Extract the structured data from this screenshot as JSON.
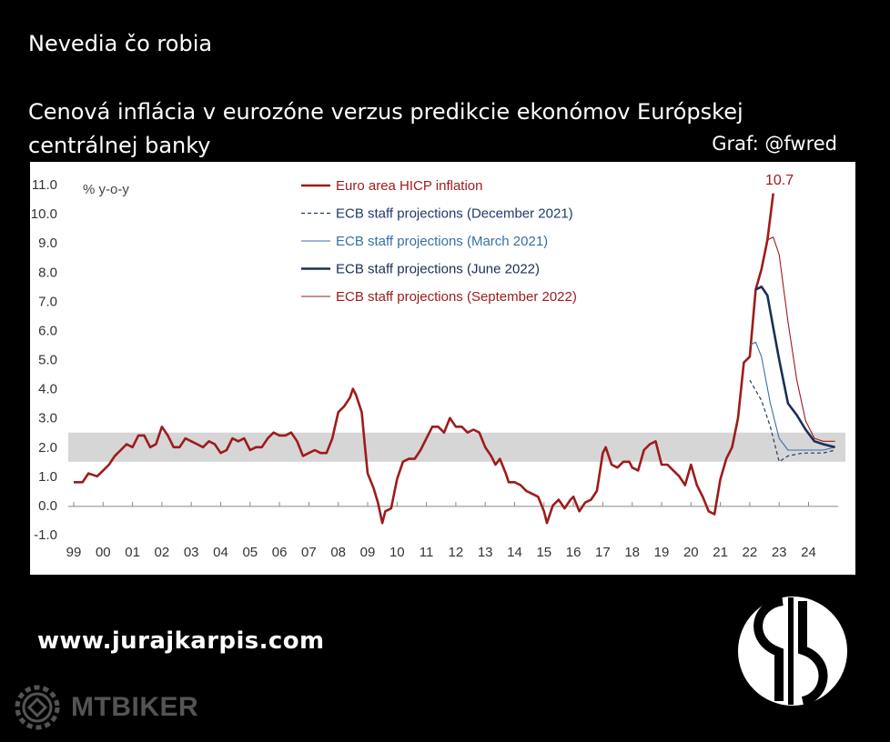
{
  "header": {
    "subtitle_top": "Nevedia čo robia",
    "title": "Cenová inflácia v eurozóne verzus predikcie ekonómov Európskej centrálnej banky",
    "credit": "Graf: @fwred"
  },
  "footer": {
    "website": "www.jurajkarpis.com",
    "watermark": "MTBIKER"
  },
  "chart_data": {
    "type": "line",
    "unit_label": "% y-o-y",
    "ylim": [
      -1.0,
      11.0
    ],
    "y_ticks": [
      "11.0",
      "10.0",
      "9.0",
      "8.0",
      "7.0",
      "6.0",
      "5.0",
      "4.0",
      "3.0",
      "2.0",
      "1.0",
      "0.0",
      "-1.0"
    ],
    "x_ticks": [
      "99",
      "00",
      "01",
      "02",
      "03",
      "04",
      "05",
      "06",
      "07",
      "08",
      "09",
      "10",
      "11",
      "12",
      "13",
      "14",
      "15",
      "16",
      "17",
      "18",
      "19",
      "20",
      "21",
      "22",
      "23",
      "24"
    ],
    "target_band": [
      1.5,
      2.5
    ],
    "peak_label": "10.7",
    "series": [
      {
        "name": "Euro area HICP inflation",
        "color": "#9e1b1b",
        "style": "thick",
        "points": [
          [
            1999.0,
            0.8
          ],
          [
            1999.3,
            0.8
          ],
          [
            1999.5,
            1.1
          ],
          [
            1999.8,
            1.0
          ],
          [
            2000.0,
            1.2
          ],
          [
            2000.2,
            1.4
          ],
          [
            2000.4,
            1.7
          ],
          [
            2000.6,
            1.9
          ],
          [
            2000.8,
            2.1
          ],
          [
            2001.0,
            2.0
          ],
          [
            2001.2,
            2.4
          ],
          [
            2001.4,
            2.4
          ],
          [
            2001.6,
            2.0
          ],
          [
            2001.8,
            2.1
          ],
          [
            2002.0,
            2.7
          ],
          [
            2002.2,
            2.4
          ],
          [
            2002.4,
            2.0
          ],
          [
            2002.6,
            2.0
          ],
          [
            2002.8,
            2.3
          ],
          [
            2003.0,
            2.2
          ],
          [
            2003.2,
            2.1
          ],
          [
            2003.4,
            2.0
          ],
          [
            2003.6,
            2.2
          ],
          [
            2003.8,
            2.1
          ],
          [
            2004.0,
            1.8
          ],
          [
            2004.2,
            1.9
          ],
          [
            2004.4,
            2.3
          ],
          [
            2004.6,
            2.2
          ],
          [
            2004.8,
            2.3
          ],
          [
            2005.0,
            1.9
          ],
          [
            2005.2,
            2.0
          ],
          [
            2005.4,
            2.0
          ],
          [
            2005.6,
            2.3
          ],
          [
            2005.8,
            2.5
          ],
          [
            2006.0,
            2.4
          ],
          [
            2006.2,
            2.4
          ],
          [
            2006.4,
            2.5
          ],
          [
            2006.6,
            2.2
          ],
          [
            2006.8,
            1.7
          ],
          [
            2007.0,
            1.8
          ],
          [
            2007.2,
            1.9
          ],
          [
            2007.4,
            1.8
          ],
          [
            2007.6,
            1.8
          ],
          [
            2007.8,
            2.3
          ],
          [
            2008.0,
            3.2
          ],
          [
            2008.2,
            3.4
          ],
          [
            2008.4,
            3.7
          ],
          [
            2008.5,
            4.0
          ],
          [
            2008.6,
            3.8
          ],
          [
            2008.8,
            3.2
          ],
          [
            2008.9,
            2.1
          ],
          [
            2009.0,
            1.1
          ],
          [
            2009.2,
            0.6
          ],
          [
            2009.35,
            0.1
          ],
          [
            2009.5,
            -0.6
          ],
          [
            2009.6,
            -0.2
          ],
          [
            2009.8,
            -0.1
          ],
          [
            2010.0,
            0.9
          ],
          [
            2010.2,
            1.5
          ],
          [
            2010.4,
            1.6
          ],
          [
            2010.6,
            1.6
          ],
          [
            2010.8,
            1.9
          ],
          [
            2011.0,
            2.3
          ],
          [
            2011.2,
            2.7
          ],
          [
            2011.4,
            2.7
          ],
          [
            2011.6,
            2.5
          ],
          [
            2011.8,
            3.0
          ],
          [
            2012.0,
            2.7
          ],
          [
            2012.2,
            2.7
          ],
          [
            2012.4,
            2.5
          ],
          [
            2012.6,
            2.6
          ],
          [
            2012.8,
            2.5
          ],
          [
            2013.0,
            2.0
          ],
          [
            2013.2,
            1.7
          ],
          [
            2013.35,
            1.4
          ],
          [
            2013.5,
            1.6
          ],
          [
            2013.7,
            1.1
          ],
          [
            2013.8,
            0.8
          ],
          [
            2014.0,
            0.8
          ],
          [
            2014.2,
            0.7
          ],
          [
            2014.4,
            0.5
          ],
          [
            2014.6,
            0.4
          ],
          [
            2014.8,
            0.3
          ],
          [
            2015.0,
            -0.2
          ],
          [
            2015.1,
            -0.6
          ],
          [
            2015.3,
            0.0
          ],
          [
            2015.5,
            0.2
          ],
          [
            2015.7,
            -0.1
          ],
          [
            2015.9,
            0.2
          ],
          [
            2016.0,
            0.3
          ],
          [
            2016.2,
            -0.2
          ],
          [
            2016.4,
            0.1
          ],
          [
            2016.6,
            0.2
          ],
          [
            2016.8,
            0.5
          ],
          [
            2017.0,
            1.8
          ],
          [
            2017.1,
            2.0
          ],
          [
            2017.3,
            1.4
          ],
          [
            2017.5,
            1.3
          ],
          [
            2017.7,
            1.5
          ],
          [
            2017.9,
            1.5
          ],
          [
            2018.0,
            1.3
          ],
          [
            2018.2,
            1.2
          ],
          [
            2018.4,
            1.9
          ],
          [
            2018.6,
            2.1
          ],
          [
            2018.8,
            2.2
          ],
          [
            2019.0,
            1.4
          ],
          [
            2019.2,
            1.4
          ],
          [
            2019.4,
            1.2
          ],
          [
            2019.6,
            1.0
          ],
          [
            2019.8,
            0.7
          ],
          [
            2020.0,
            1.4
          ],
          [
            2020.2,
            0.7
          ],
          [
            2020.4,
            0.3
          ],
          [
            2020.6,
            -0.2
          ],
          [
            2020.8,
            -0.3
          ],
          [
            2021.0,
            0.9
          ],
          [
            2021.2,
            1.6
          ],
          [
            2021.4,
            2.0
          ],
          [
            2021.6,
            3.0
          ],
          [
            2021.8,
            4.9
          ],
          [
            2022.0,
            5.1
          ],
          [
            2022.2,
            7.4
          ],
          [
            2022.4,
            8.1
          ],
          [
            2022.6,
            9.1
          ],
          [
            2022.8,
            10.7
          ]
        ]
      },
      {
        "name": "ECB staff projections (December 2021)",
        "color": "#1f3b66",
        "style": "dashed",
        "points": [
          [
            2022.0,
            4.3
          ],
          [
            2022.4,
            3.6
          ],
          [
            2022.7,
            2.7
          ],
          [
            2023.0,
            1.5
          ],
          [
            2023.3,
            1.7
          ],
          [
            2023.8,
            1.8
          ],
          [
            2024.5,
            1.8
          ],
          [
            2024.9,
            1.9
          ]
        ]
      },
      {
        "name": "ECB staff projections (March 2021)",
        "color": "#3a6fa5",
        "style": "thin",
        "points": [
          [
            2022.0,
            5.5
          ],
          [
            2022.2,
            5.6
          ],
          [
            2022.4,
            5.1
          ],
          [
            2022.7,
            3.5
          ],
          [
            2023.0,
            2.3
          ],
          [
            2023.3,
            1.9
          ],
          [
            2023.8,
            1.9
          ],
          [
            2024.5,
            1.9
          ],
          [
            2024.9,
            2.0
          ]
        ]
      },
      {
        "name": "ECB staff projections (June 2022)",
        "color": "#1b2f55",
        "style": "thick",
        "points": [
          [
            2022.2,
            7.4
          ],
          [
            2022.4,
            7.5
          ],
          [
            2022.6,
            7.2
          ],
          [
            2022.8,
            6.1
          ],
          [
            2023.0,
            5.0
          ],
          [
            2023.3,
            3.5
          ],
          [
            2023.6,
            3.1
          ],
          [
            2023.9,
            2.6
          ],
          [
            2024.2,
            2.2
          ],
          [
            2024.5,
            2.1
          ],
          [
            2024.9,
            2.0
          ]
        ]
      },
      {
        "name": "ECB staff projections (September 2022)",
        "color": "#9e1b1b",
        "style": "thin",
        "points": [
          [
            2022.6,
            9.1
          ],
          [
            2022.8,
            9.2
          ],
          [
            2023.0,
            8.6
          ],
          [
            2023.3,
            6.3
          ],
          [
            2023.6,
            4.3
          ],
          [
            2023.9,
            2.9
          ],
          [
            2024.2,
            2.3
          ],
          [
            2024.5,
            2.2
          ],
          [
            2024.9,
            2.2
          ]
        ]
      }
    ]
  }
}
